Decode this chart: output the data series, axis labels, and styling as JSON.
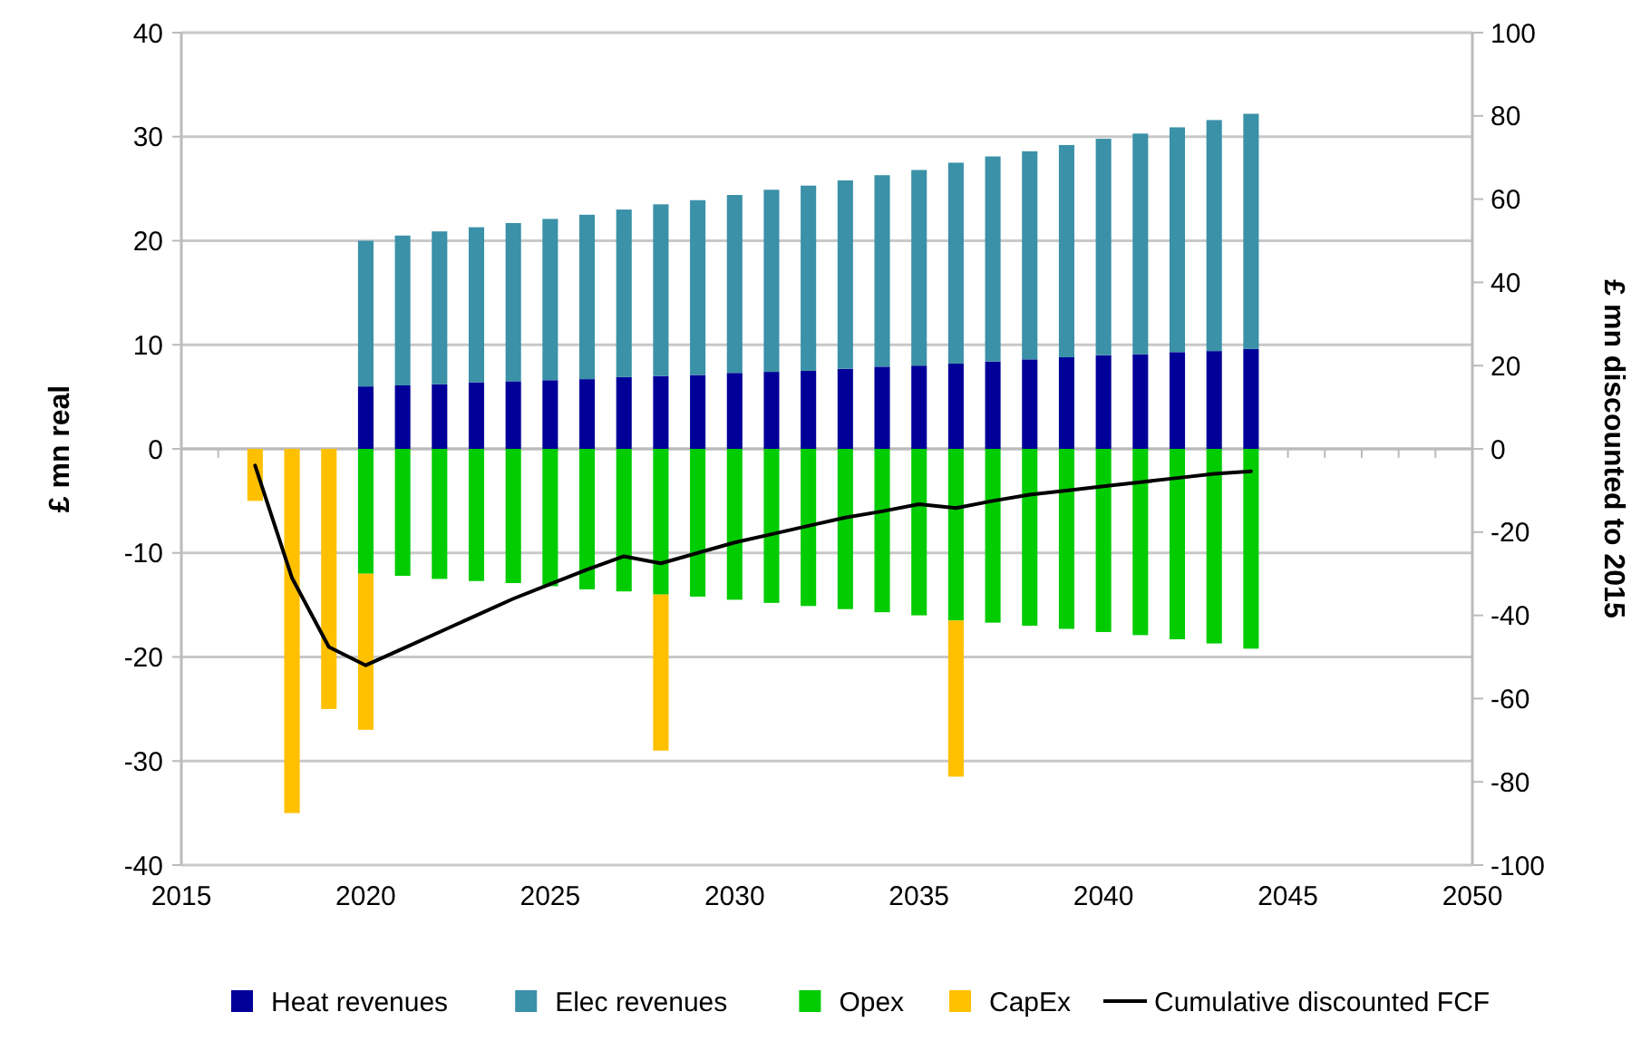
{
  "chart_data": {
    "type": "bar",
    "stacked": true,
    "ylabel": "£ mn real",
    "y2label": "£ mn discounted to 2015",
    "x": [
      2017,
      2018,
      2019,
      2020,
      2021,
      2022,
      2023,
      2024,
      2025,
      2026,
      2027,
      2028,
      2029,
      2030,
      2031,
      2032,
      2033,
      2034,
      2035,
      2036,
      2037,
      2038,
      2039,
      2040,
      2041,
      2042,
      2043,
      2044
    ],
    "series": [
      {
        "name": "Heat revenues",
        "color": "#000099",
        "values": [
          null,
          null,
          null,
          6.0,
          6.1,
          6.2,
          6.4,
          6.5,
          6.6,
          6.7,
          6.9,
          7.0,
          7.1,
          7.3,
          7.4,
          7.5,
          7.7,
          7.9,
          8.0,
          8.2,
          8.4,
          8.6,
          8.8,
          9.0,
          9.1,
          9.3,
          9.4,
          9.6
        ]
      },
      {
        "name": "Elec revenues",
        "color": "#3a91a8",
        "values": [
          null,
          null,
          null,
          14.0,
          14.4,
          14.7,
          14.9,
          15.2,
          15.5,
          15.8,
          16.1,
          16.5,
          16.8,
          17.1,
          17.5,
          17.8,
          18.1,
          18.4,
          18.8,
          19.3,
          19.7,
          20.0,
          20.4,
          20.8,
          21.2,
          21.6,
          22.2,
          22.6
        ]
      },
      {
        "name": "Opex",
        "color": "#00cc00",
        "values": [
          null,
          null,
          null,
          -12.0,
          -12.2,
          -12.5,
          -12.7,
          -12.9,
          -13.2,
          -13.5,
          -13.7,
          -14.0,
          -14.2,
          -14.5,
          -14.8,
          -15.1,
          -15.4,
          -15.7,
          -16.0,
          -16.5,
          -16.7,
          -17.0,
          -17.3,
          -17.6,
          -17.9,
          -18.3,
          -18.7,
          -19.2
        ]
      },
      {
        "name": "CapEx",
        "color": "#ffc000",
        "values": [
          -5,
          -35,
          -25,
          -15,
          null,
          null,
          null,
          null,
          null,
          null,
          null,
          -15,
          null,
          null,
          null,
          null,
          null,
          null,
          null,
          -15,
          null,
          null,
          null,
          null,
          null,
          null,
          null,
          null
        ]
      },
      {
        "name": "Cumulative discounted FCF",
        "type": "line",
        "axis": "y2",
        "color": "#000000",
        "values": [
          -4,
          -31,
          -47.6,
          -52,
          -48,
          -44,
          -40,
          -36,
          -32.5,
          -29,
          -25.8,
          -27.5,
          -25,
          -22.5,
          -20.5,
          -18.5,
          -16.5,
          -15,
          -13.3,
          -14.2,
          -12.5,
          -11,
          -10,
          -9,
          -8,
          -7,
          -6,
          -5.4
        ]
      }
    ],
    "xlim": [
      2015,
      2050
    ],
    "xticks": [
      2015,
      2020,
      2025,
      2030,
      2035,
      2040,
      2045,
      2050
    ],
    "ylim": [
      -40,
      40
    ],
    "yticks": [
      -40,
      -30,
      -20,
      -10,
      0,
      10,
      20,
      30,
      40
    ],
    "y2lim": [
      -100,
      100
    ],
    "y2ticks": [
      -100,
      -80,
      -60,
      -40,
      -20,
      0,
      20,
      40,
      60,
      80,
      100
    ],
    "grid": "y",
    "legend": "bottom",
    "marker": "none",
    "line_style": "solid"
  }
}
